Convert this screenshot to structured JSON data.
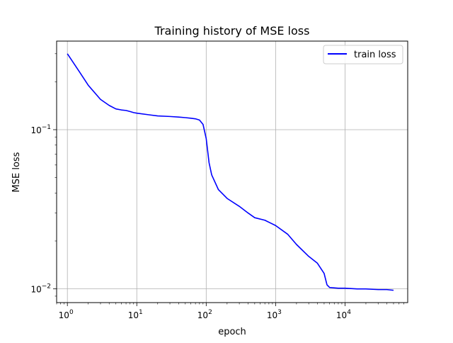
{
  "chart_data": {
    "type": "line",
    "title": "Training history of MSE loss",
    "xlabel": "epoch",
    "ylabel": "MSE loss",
    "xscale": "log",
    "yscale": "log",
    "xlim": [
      0.7,
      80000
    ],
    "ylim": [
      0.0082,
      0.36
    ],
    "grid": true,
    "legend": "top-right",
    "x_ticks": [
      {
        "base": "10",
        "exp": "0",
        "value": 1
      },
      {
        "base": "10",
        "exp": "1",
        "value": 10
      },
      {
        "base": "10",
        "exp": "2",
        "value": 100
      },
      {
        "base": "10",
        "exp": "3",
        "value": 1000
      },
      {
        "base": "10",
        "exp": "4",
        "value": 10000
      }
    ],
    "y_ticks": [
      {
        "base": "10",
        "exp": "−1",
        "value": 0.1
      },
      {
        "base": "10",
        "exp": "−2",
        "value": 0.01
      }
    ],
    "series": [
      {
        "name": "train loss",
        "color": "#0000ff",
        "x": [
          1,
          1.5,
          2,
          3,
          4,
          5,
          6,
          7,
          8,
          9,
          10,
          15,
          20,
          30,
          40,
          50,
          60,
          70,
          80,
          90,
          100,
          110,
          120,
          150,
          200,
          300,
          400,
          500,
          700,
          1000,
          1500,
          2000,
          3000,
          4000,
          5000,
          5500,
          6000,
          8000,
          10000,
          15000,
          20000,
          30000,
          40000,
          50000
        ],
        "values": [
          0.3,
          0.23,
          0.19,
          0.155,
          0.142,
          0.135,
          0.133,
          0.132,
          0.13,
          0.128,
          0.127,
          0.124,
          0.122,
          0.121,
          0.12,
          0.119,
          0.118,
          0.117,
          0.115,
          0.108,
          0.088,
          0.062,
          0.052,
          0.042,
          0.037,
          0.033,
          0.03,
          0.028,
          0.027,
          0.025,
          0.022,
          0.019,
          0.016,
          0.0145,
          0.0125,
          0.0106,
          0.0102,
          0.0101,
          0.0101,
          0.01,
          0.01,
          0.0099,
          0.0099,
          0.0098
        ]
      }
    ]
  }
}
